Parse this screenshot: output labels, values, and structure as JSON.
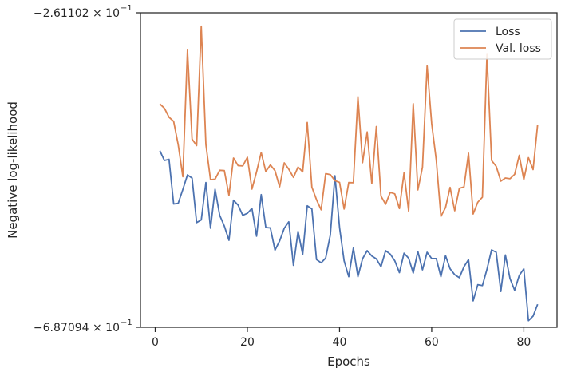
{
  "chart_data": {
    "type": "line",
    "xlabel": "Epochs",
    "ylabel": "Negative log-likelihood",
    "xlim": [
      -3.2,
      87.2
    ],
    "ylim": [
      -0.687094,
      -0.261102
    ],
    "y_scale": "symlog-like (negative log axis)",
    "xticks": [
      0,
      20,
      40,
      60,
      80
    ],
    "xtick_labels": [
      "0",
      "20",
      "40",
      "60",
      "80"
    ],
    "ytick_labels": [
      "−2.61102 × 10",
      "−6.87094 × 10"
    ],
    "ytick_exponent": "−1",
    "grid": false,
    "legend_position": "top-right",
    "colors": {
      "loss": "#4c72b0",
      "val_loss": "#dd8452",
      "axes": "#262626"
    },
    "x": [
      1,
      2,
      3,
      4,
      5,
      6,
      7,
      8,
      9,
      10,
      11,
      12,
      13,
      14,
      15,
      16,
      17,
      18,
      19,
      20,
      21,
      22,
      23,
      24,
      25,
      26,
      27,
      28,
      29,
      30,
      31,
      32,
      33,
      34,
      35,
      36,
      37,
      38,
      39,
      40,
      41,
      42,
      43,
      44,
      45,
      46,
      47,
      48,
      49,
      50,
      51,
      52,
      53,
      54,
      55,
      56,
      57,
      58,
      59,
      60,
      61,
      62,
      63,
      64,
      65,
      66,
      67,
      68,
      69,
      70,
      71,
      72,
      73,
      74,
      75,
      76,
      77,
      78,
      79,
      80,
      81,
      82,
      83
    ],
    "series": [
      {
        "name": "Loss",
        "values": [
          -0.4478,
          -0.4611,
          -0.4596,
          -0.5201,
          -0.5192,
          -0.5005,
          -0.4807,
          -0.485,
          -0.5452,
          -0.5417,
          -0.491,
          -0.5529,
          -0.5001,
          -0.5354,
          -0.55,
          -0.5692,
          -0.515,
          -0.5217,
          -0.5354,
          -0.5327,
          -0.526,
          -0.5637,
          -0.5074,
          -0.5519,
          -0.5525,
          -0.5827,
          -0.5701,
          -0.5529,
          -0.5442,
          -0.6032,
          -0.5571,
          -0.5884,
          -0.5225,
          -0.5268,
          -0.5953,
          -0.5997,
          -0.5932,
          -0.5621,
          -0.4818,
          -0.5521,
          -0.597,
          -0.6185,
          -0.5797,
          -0.6185,
          -0.5943,
          -0.5833,
          -0.5905,
          -0.5944,
          -0.605,
          -0.5833,
          -0.5879,
          -0.597,
          -0.613,
          -0.5868,
          -0.5936,
          -0.6136,
          -0.5844,
          -0.6092,
          -0.5855,
          -0.594,
          -0.594,
          -0.6185,
          -0.5901,
          -0.6078,
          -0.6158,
          -0.62,
          -0.605,
          -0.5955,
          -0.6513,
          -0.6294,
          -0.6305,
          -0.6086,
          -0.5822,
          -0.5855,
          -0.6386,
          -0.5891,
          -0.6213,
          -0.6369,
          -0.6168,
          -0.6078,
          -0.6781,
          -0.672,
          -0.656
        ]
      },
      {
        "name": "Val. loss",
        "values": [
          -0.3846,
          -0.3904,
          -0.4025,
          -0.4082,
          -0.4398,
          -0.4831,
          -0.3117,
          -0.4323,
          -0.441,
          -0.2793,
          -0.4395,
          -0.4872,
          -0.4864,
          -0.4744,
          -0.4749,
          -0.5085,
          -0.4579,
          -0.4681,
          -0.4686,
          -0.4568,
          -0.4999,
          -0.4766,
          -0.4504,
          -0.4761,
          -0.4672,
          -0.475,
          -0.4968,
          -0.4644,
          -0.473,
          -0.484,
          -0.4701,
          -0.4765,
          -0.4097,
          -0.4972,
          -0.5142,
          -0.5279,
          -0.479,
          -0.4803,
          -0.4885,
          -0.4909,
          -0.5269,
          -0.4911,
          -0.4913,
          -0.3747,
          -0.4641,
          -0.4225,
          -0.4925,
          -0.4152,
          -0.5094,
          -0.5204,
          -0.5044,
          -0.5063,
          -0.5262,
          -0.4778,
          -0.5299,
          -0.3842,
          -0.501,
          -0.4702,
          -0.3331,
          -0.411,
          -0.4608,
          -0.5369,
          -0.5248,
          -0.4977,
          -0.5292,
          -0.4989,
          -0.4971,
          -0.4513,
          -0.5337,
          -0.5177,
          -0.5109,
          -0.3175,
          -0.4611,
          -0.4691,
          -0.4891,
          -0.4849,
          -0.4859,
          -0.4799,
          -0.4542,
          -0.487,
          -0.4573,
          -0.4735,
          -0.4126
        ]
      }
    ]
  }
}
